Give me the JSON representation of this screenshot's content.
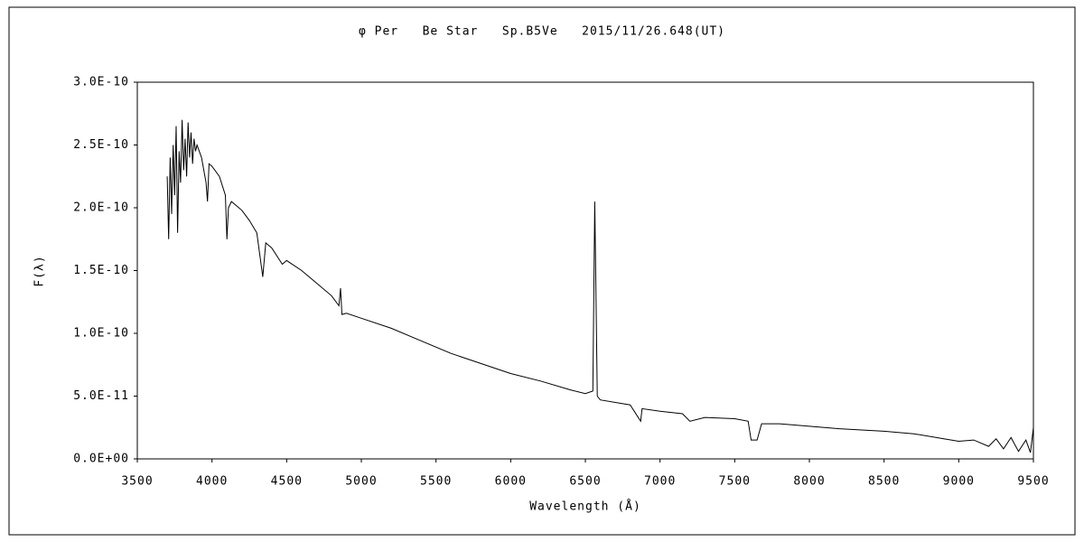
{
  "chart_data": {
    "type": "line",
    "title": "φ Per   Be Star   Sp.B5Ve   2015/11/26.648(UT)",
    "x_label": "Wavelength (Å)",
    "y_label": "F(λ)",
    "color": "#000000",
    "grid": false,
    "xlim": [
      3500,
      9500
    ],
    "xticks": [
      3500,
      4000,
      4500,
      5000,
      5500,
      6000,
      6500,
      7000,
      7500,
      8000,
      8500,
      9000,
      9500
    ],
    "ylim": [
      0,
      3e-10
    ],
    "yticks": [
      {
        "value": 0,
        "label": "0.0E+00"
      },
      {
        "value": 5e-11,
        "label": "5.0E-11"
      },
      {
        "value": 1e-10,
        "label": "1.0E-10"
      },
      {
        "value": 1.5e-10,
        "label": "1.5E-10"
      },
      {
        "value": 2e-10,
        "label": "2.0E-10"
      },
      {
        "value": 2.5e-10,
        "label": "2.5E-10"
      },
      {
        "value": 3e-10,
        "label": "3.0E-10"
      }
    ],
    "x": [
      3700,
      3710,
      3720,
      3730,
      3740,
      3750,
      3760,
      3770,
      3780,
      3790,
      3800,
      3810,
      3820,
      3830,
      3840,
      3850,
      3860,
      3870,
      3880,
      3890,
      3900,
      3930,
      3960,
      3970,
      3980,
      4000,
      4050,
      4090,
      4100,
      4110,
      4130,
      4200,
      4250,
      4300,
      4340,
      4360,
      4400,
      4471,
      4500,
      4600,
      4700,
      4800,
      4850,
      4861,
      4870,
      4900,
      5000,
      5200,
      5400,
      5600,
      5800,
      6000,
      6200,
      6400,
      6500,
      6550,
      6560,
      6563,
      6570,
      6580,
      6600,
      6800,
      6870,
      6880,
      7000,
      7150,
      7200,
      7300,
      7500,
      7590,
      7610,
      7650,
      7680,
      7800,
      8000,
      8200,
      8500,
      8700,
      8900,
      9000,
      9100,
      9200,
      9250,
      9300,
      9350,
      9400,
      9450,
      9480,
      9500
    ],
    "values": [
      2.25e-10,
      1.75e-10,
      2.4e-10,
      1.95e-10,
      2.5e-10,
      2.1e-10,
      2.65e-10,
      1.8e-10,
      2.45e-10,
      2.2e-10,
      2.7e-10,
      2.3e-10,
      2.55e-10,
      2.25e-10,
      2.68e-10,
      2.4e-10,
      2.6e-10,
      2.35e-10,
      2.55e-10,
      2.45e-10,
      2.5e-10,
      2.4e-10,
      2.2e-10,
      2.05e-10,
      2.35e-10,
      2.33e-10,
      2.25e-10,
      2.1e-10,
      1.75e-10,
      2e-10,
      2.05e-10,
      1.98e-10,
      1.9e-10,
      1.8e-10,
      1.45e-10,
      1.72e-10,
      1.68e-10,
      1.55e-10,
      1.58e-10,
      1.5e-10,
      1.4e-10,
      1.3e-10,
      1.22e-10,
      1.36e-10,
      1.15e-10,
      1.16e-10,
      1.12e-10,
      1.04e-10,
      9.4e-11,
      8.4e-11,
      7.6e-11,
      6.8e-11,
      6.2e-11,
      5.5e-11,
      5.2e-11,
      5.4e-11,
      1.7e-10,
      2.05e-10,
      1.4e-10,
      5e-11,
      4.7e-11,
      4.3e-11,
      3e-11,
      4e-11,
      3.8e-11,
      3.6e-11,
      3e-11,
      3.3e-11,
      3.2e-11,
      3e-11,
      1.5e-11,
      1.5e-11,
      2.8e-11,
      2.8e-11,
      2.6e-11,
      2.4e-11,
      2.2e-11,
      2e-11,
      1.6e-11,
      1.4e-11,
      1.5e-11,
      1e-11,
      1.6e-11,
      8e-12,
      1.7e-11,
      6e-12,
      1.5e-11,
      5e-12,
      2.5e-11
    ]
  }
}
